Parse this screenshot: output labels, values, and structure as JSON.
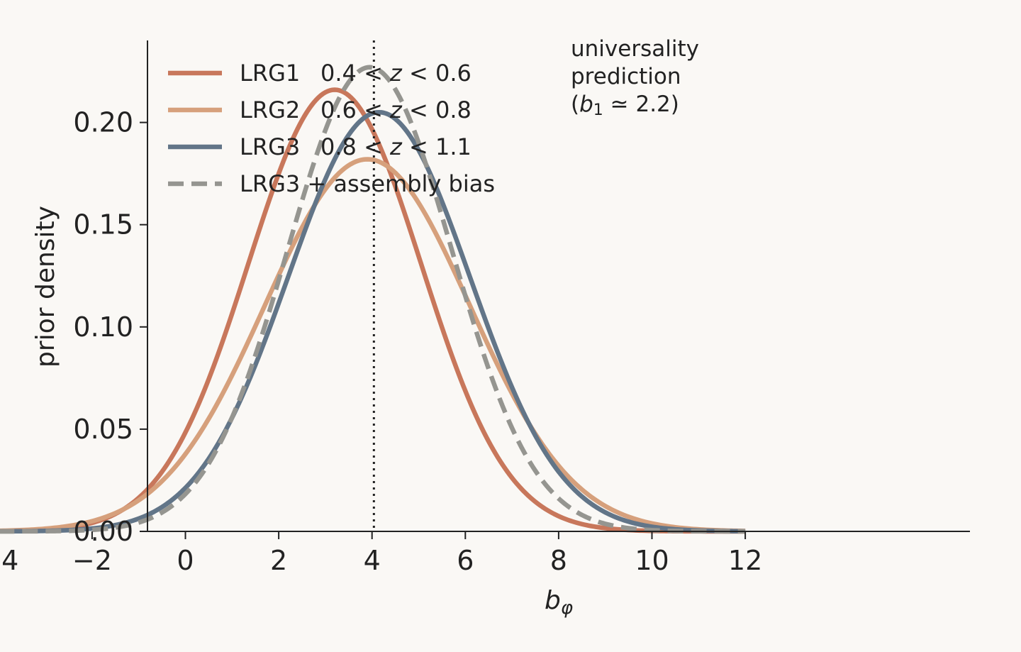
{
  "chart_data": {
    "type": "line",
    "xlabel": "b_φ",
    "ylabel": "prior density",
    "xlim": [
      -4.8,
      12.8
    ],
    "ylim": [
      0,
      0.24
    ],
    "xticks": [
      -4,
      -2,
      0,
      2,
      4,
      6,
      8,
      10,
      12
    ],
    "yticks": [
      0.0,
      0.05,
      0.1,
      0.15,
      0.2
    ],
    "xtick_labels": [
      "−4",
      "−2",
      "0",
      "2",
      "4",
      "6",
      "8",
      "10",
      "12"
    ],
    "ytick_labels": [
      "0.00",
      "0.05",
      "0.10",
      "0.15",
      "0.20"
    ],
    "grid": false,
    "legend_position": "top-left",
    "series": [
      {
        "name": "LRG1  0.4 < z < 0.6",
        "legend_prefix": "LRG1",
        "legend_range": "0.4 < z < 0.6",
        "mean": 3.2,
        "sigma": 1.85,
        "peak": 0.216,
        "style": "solid",
        "color": "#c8775b"
      },
      {
        "name": "LRG2  0.6 < z < 0.8",
        "legend_prefix": "LRG2",
        "legend_range": "0.6 < z < 0.8",
        "mean": 3.9,
        "sigma": 2.2,
        "peak": 0.182,
        "style": "solid",
        "color": "#d6a07c"
      },
      {
        "name": "LRG3  0.8 < z < 1.1",
        "legend_prefix": "LRG3",
        "legend_range": "0.8 < z < 1.1",
        "mean": 4.15,
        "sigma": 1.95,
        "peak": 0.205,
        "style": "solid",
        "color": "#627588"
      },
      {
        "name": "LRG3 + assembly bias",
        "legend_prefix": "LRG3 + assembly bias",
        "legend_range": "",
        "mean": 3.95,
        "sigma": 1.76,
        "peak": 0.227,
        "style": "dashed",
        "color": "#959590"
      }
    ],
    "x_range": [
      -4,
      12
    ],
    "vline": {
      "x": 4.04,
      "style": "dotted",
      "color": "#222222"
    },
    "annotation": {
      "line1": "universality",
      "line2": "prediction",
      "line3_pre": "(",
      "line3_var": "b",
      "line3_sub": "1",
      "line3_post": " ≃ 2.2)"
    }
  }
}
